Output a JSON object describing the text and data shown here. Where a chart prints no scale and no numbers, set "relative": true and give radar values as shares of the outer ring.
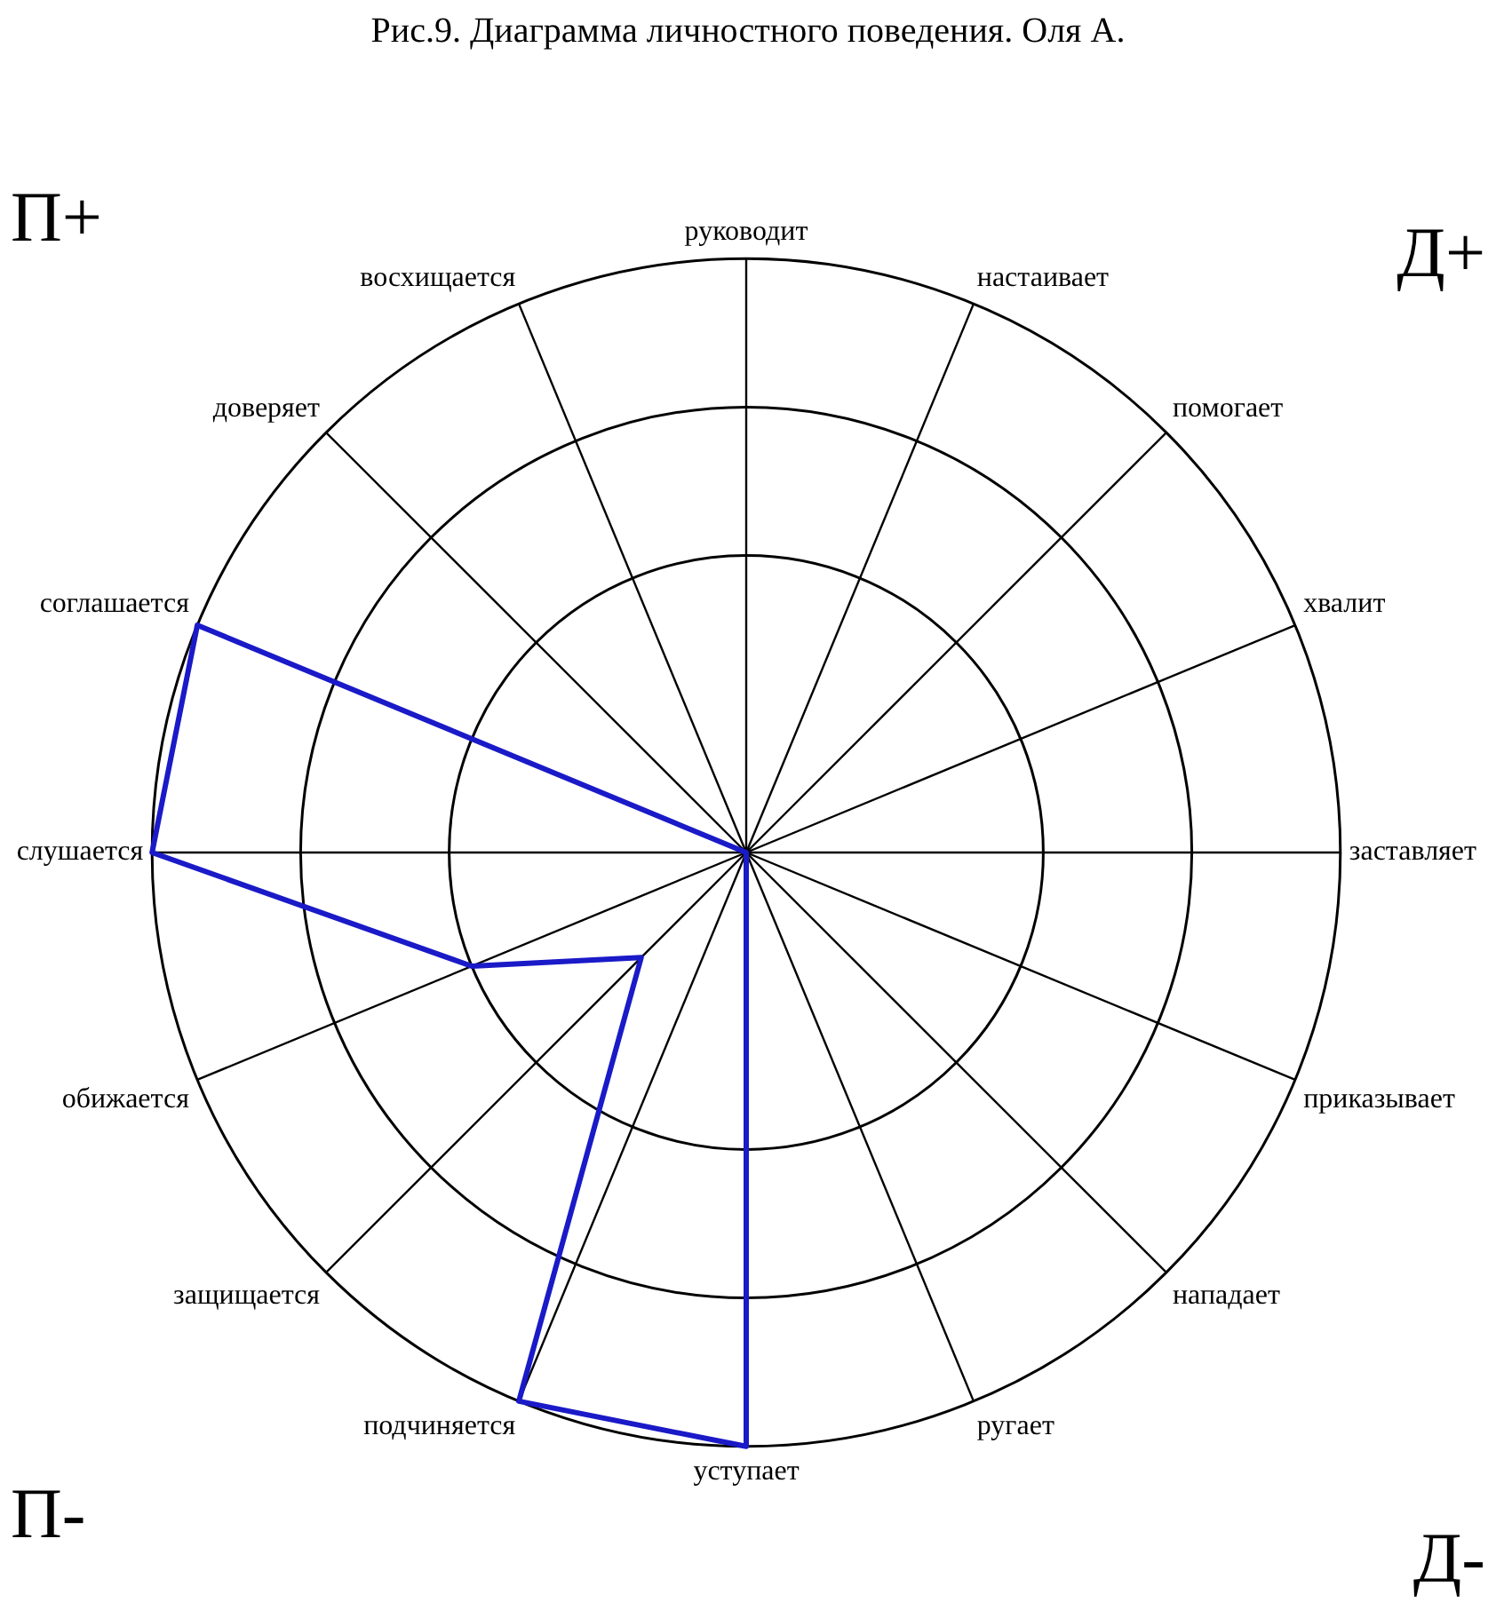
{
  "chart_data": {
    "type": "radar",
    "title": "Рис.9. Диаграмма личностного поведения. Оля А.",
    "categories": [
      "руководит",
      "настаивает",
      "помогает",
      "хвалит",
      "заставляет",
      "приказывает",
      "нападает",
      "ругает",
      "уступает",
      "подчиняется",
      "защищается",
      "обижается",
      "слушается",
      "соглашается",
      "доверяет",
      "восхищается"
    ],
    "relative": true,
    "series": [
      {
        "color": "#1a1ac8",
        "values": [
          0,
          0,
          0,
          0,
          0,
          0,
          0,
          0,
          1,
          1,
          0.25,
          0.5,
          1,
          1,
          0,
          0
        ]
      }
    ],
    "annotations": [
      "П+",
      "Д+",
      "П-",
      "Д-"
    ]
  }
}
